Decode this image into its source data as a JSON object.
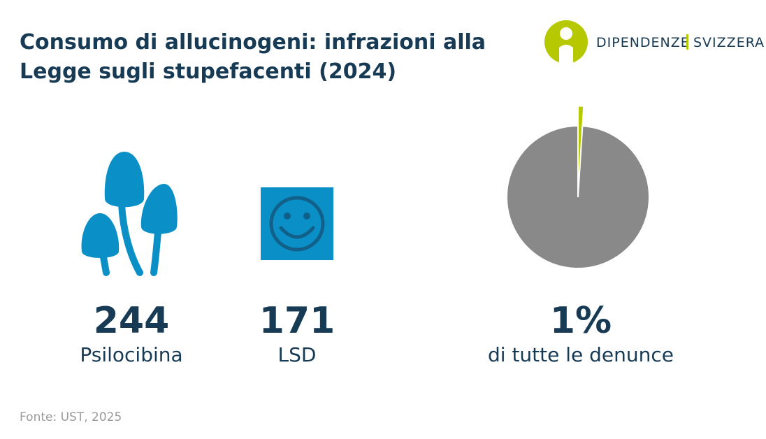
{
  "header": {
    "title": [
      "Consumo di allucinogeni: infrazioni alla",
      "Legge sugli stupefacenti (2024)"
    ],
    "logo": [
      "DIPENDENZE",
      "SVIZZERA"
    ]
  },
  "stats": [
    {
      "value": 244,
      "label": "Psilocibina"
    },
    {
      "value": 171,
      "label": "LSD"
    }
  ],
  "chart_data": {
    "type": "pie",
    "values": [
      1,
      99
    ],
    "value_labels": [
      "1%",
      null
    ],
    "colors": [
      "#b5c800",
      "#898989"
    ],
    "caption": "di tutte le denunce"
  },
  "source": "Fonte: UST, 2025"
}
